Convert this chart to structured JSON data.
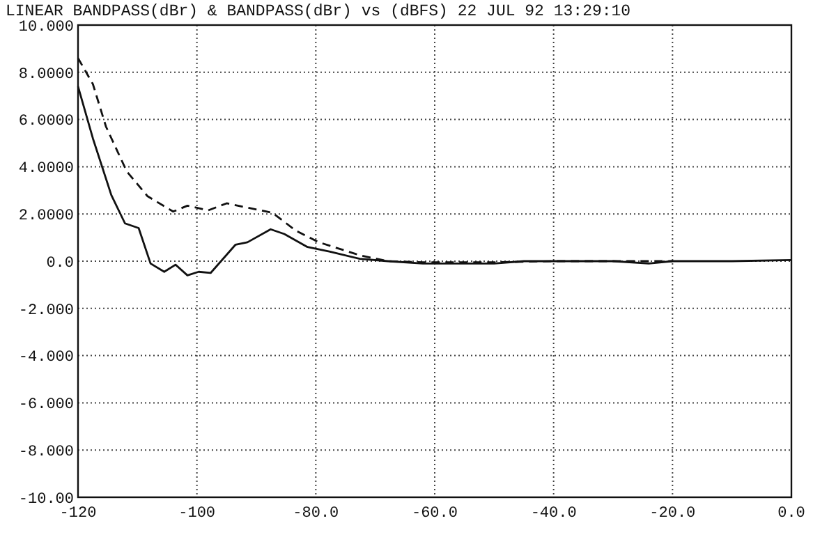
{
  "chart_data": {
    "type": "line",
    "title": "LINEAR BANDPASS(dBr) & BANDPASS(dBr) vs   (dBFS) 22 JUL 92 13:29:10",
    "xlim": [
      -120,
      0
    ],
    "ylim": [
      -10,
      10
    ],
    "xticks": [
      {
        "value": -120,
        "label": "-120"
      },
      {
        "value": -100,
        "label": "-100"
      },
      {
        "value": -80,
        "label": "-80.0"
      },
      {
        "value": -60,
        "label": "-60.0"
      },
      {
        "value": -40,
        "label": "-40.0"
      },
      {
        "value": -20,
        "label": "-20.0"
      },
      {
        "value": 0,
        "label": "0.0"
      }
    ],
    "yticks": [
      {
        "value": 10,
        "label": "10.000"
      },
      {
        "value": 8,
        "label": "8.0000"
      },
      {
        "value": 6,
        "label": "6.0000"
      },
      {
        "value": 4,
        "label": "4.0000"
      },
      {
        "value": 2,
        "label": "2.0000"
      },
      {
        "value": 0,
        "label": "0.0"
      },
      {
        "value": -2,
        "label": "-2.000"
      },
      {
        "value": -4,
        "label": "-4.000"
      },
      {
        "value": -6,
        "label": "-6.000"
      },
      {
        "value": -8,
        "label": "-8.000"
      },
      {
        "value": -10,
        "label": "-10.00"
      }
    ],
    "grid": true,
    "series": [
      {
        "color": "#111111",
        "line_style": "solid",
        "x": [
          -120,
          -117.5,
          -114.4,
          -112.1,
          -109.8,
          -107.8,
          -105.5,
          -103.6,
          -101.6,
          -99.7,
          -97.7,
          -93.5,
          -91.5,
          -87.6,
          -85.3,
          -81.4,
          -77.6,
          -72.6,
          -67.9,
          -62,
          -55,
          -50,
          -45,
          -30,
          -24,
          -20,
          -10,
          0
        ],
        "values": [
          7.4,
          5.2,
          2.8,
          1.6,
          1.4,
          -0.1,
          -0.45,
          -0.15,
          -0.6,
          -0.45,
          -0.5,
          0.7,
          0.8,
          1.35,
          1.15,
          0.6,
          0.4,
          0.1,
          0,
          -0.1,
          -0.1,
          -0.1,
          0,
          0,
          -0.1,
          0,
          0,
          0.05
        ]
      },
      {
        "color": "#111111",
        "line_style": "dashed",
        "x": [
          -120,
          -117.5,
          -115.3,
          -111.8,
          -108.3,
          -104,
          -101.6,
          -98.1,
          -95,
          -91.2,
          -87.3,
          -83.4,
          -79.5,
          -72.6,
          -67.9,
          -62,
          -55,
          -50,
          -40,
          -30,
          -20
        ],
        "values": [
          8.6,
          7.5,
          5.7,
          3.8,
          2.75,
          2.1,
          2.35,
          2.15,
          2.45,
          2.25,
          2.05,
          1.3,
          0.8,
          0.25,
          0,
          -0.05,
          -0.05,
          -0.05,
          0,
          0,
          0
        ]
      }
    ]
  }
}
